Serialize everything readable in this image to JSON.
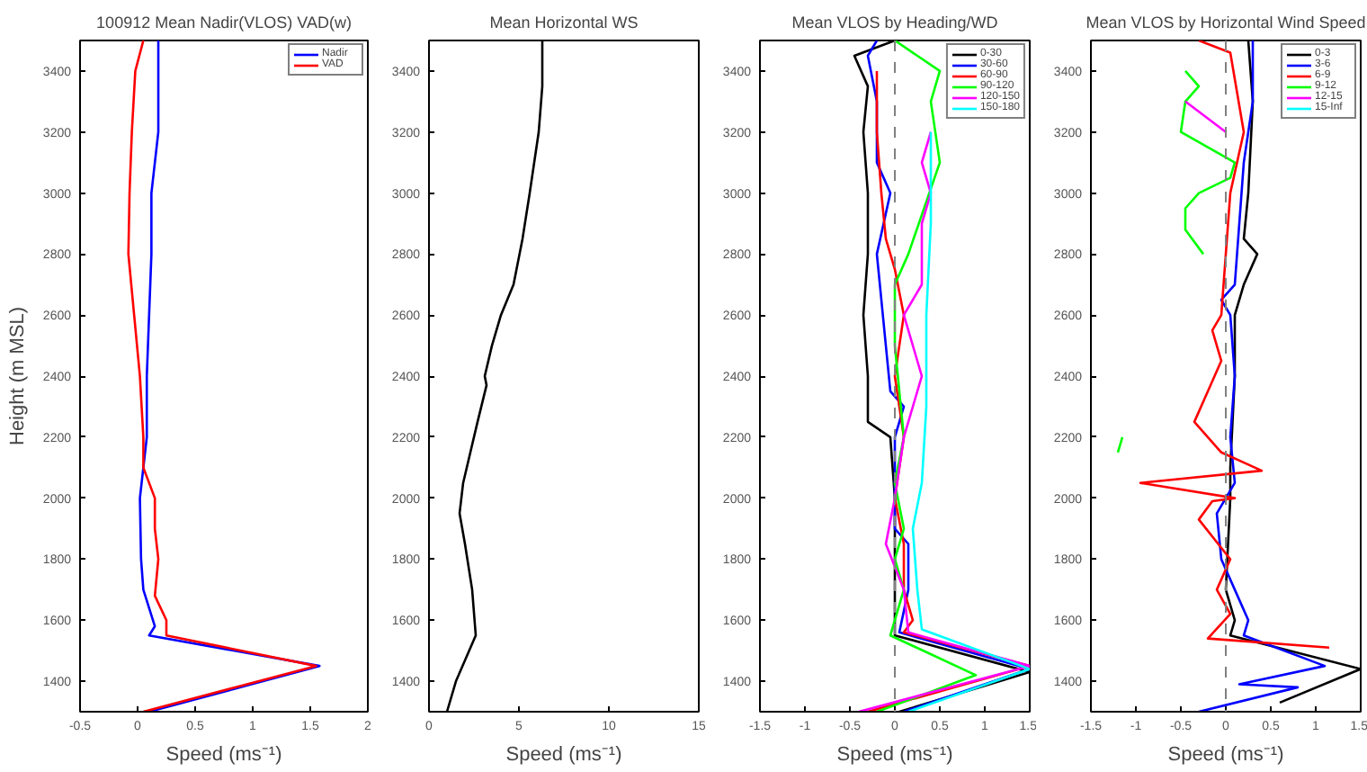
{
  "chart_data": [
    {
      "type": "line",
      "title": "100912 Mean Nadir(VLOS) VAD(w)",
      "xlabel": "Speed (ms⁻¹)",
      "ylabel": "Height (m MSL)",
      "xlim": [
        -0.5,
        2
      ],
      "xticks": [
        -0.5,
        0,
        0.5,
        1,
        1.5,
        2
      ],
      "ylim": [
        1300,
        3500
      ],
      "yticks": [
        1400,
        1600,
        1800,
        2000,
        2200,
        2400,
        2600,
        2800,
        3000,
        3200,
        3400
      ],
      "legend": "top right",
      "series": [
        {
          "name": "Nadir",
          "color": "#0000ff",
          "x": [
            0.1,
            1.58,
            0.1,
            0.15,
            0.05,
            0.03,
            0.02,
            0.08,
            0.08,
            0.1,
            0.12,
            0.12,
            0.18,
            0.18,
            0.18
          ],
          "values": [
            1300,
            1450,
            1550,
            1580,
            1700,
            1800,
            2000,
            2200,
            2400,
            2600,
            2800,
            3000,
            3200,
            3300,
            3500
          ]
        },
        {
          "name": "VAD",
          "color": "#ff0000",
          "x": [
            0.05,
            1.55,
            0.25,
            0.25,
            0.15,
            0.18,
            0.15,
            0.15,
            0.05,
            0.05,
            0.02,
            -0.03,
            -0.08,
            -0.07,
            -0.05,
            -0.02,
            0.05
          ],
          "values": [
            1300,
            1450,
            1550,
            1600,
            1680,
            1800,
            1900,
            2000,
            2100,
            2200,
            2400,
            2600,
            2800,
            3000,
            3200,
            3400,
            3500
          ]
        }
      ]
    },
    {
      "type": "line",
      "title": "Mean Horizontal WS",
      "xlabel": "Speed (ms⁻¹)",
      "xlim": [
        0,
        15
      ],
      "xticks": [
        0,
        5,
        10,
        15
      ],
      "ylim": [
        1300,
        3500
      ],
      "yticks": [
        1400,
        1600,
        1800,
        2000,
        2200,
        2400,
        2600,
        2800,
        3000,
        3200,
        3400
      ],
      "series": [
        {
          "color": "#000000",
          "x": [
            1.0,
            1.5,
            2.6,
            2.4,
            2.0,
            1.7,
            1.9,
            2.3,
            2.7,
            3.2,
            3.1,
            3.5,
            4.0,
            4.7,
            5.2,
            5.6,
            6.1,
            6.3,
            6.3
          ],
          "values": [
            1300,
            1400,
            1550,
            1700,
            1850,
            1950,
            2050,
            2150,
            2250,
            2370,
            2400,
            2500,
            2600,
            2700,
            2850,
            3000,
            3200,
            3350,
            3500
          ]
        }
      ]
    },
    {
      "type": "line",
      "title": "Mean VLOS by Heading/WD",
      "xlabel": "Speed (ms⁻¹)",
      "xlim": [
        -1.5,
        1.5
      ],
      "xticks": [
        -1.5,
        -1,
        -0.5,
        0,
        0.5,
        1,
        1.5
      ],
      "ylim": [
        1300,
        3500
      ],
      "yticks": [
        1400,
        1600,
        1800,
        2000,
        2200,
        2400,
        2600,
        2800,
        3000,
        3200,
        3400
      ],
      "legend": "top right",
      "ref_lines": [
        {
          "axis": "x",
          "value": 0,
          "color": "#808080",
          "line_style": "dashed"
        }
      ],
      "series": [
        {
          "name": "0-30",
          "color": "#000000",
          "x": [
            0.05,
            1.5,
            0.0,
            0.0,
            0.0,
            -0.05,
            -0.3,
            -0.3,
            -0.35,
            -0.3,
            -0.3,
            -0.35,
            -0.3,
            -0.45,
            0.0
          ],
          "values": [
            1300,
            1430,
            1550,
            1700,
            2000,
            2200,
            2250,
            2400,
            2600,
            2800,
            3000,
            3200,
            3350,
            3450,
            3500
          ]
        },
        {
          "name": "30-60",
          "color": "#0000ff",
          "x": [
            0.1,
            1.5,
            0.05,
            0.15,
            0.15,
            0.0,
            0.0,
            0.0,
            0.1,
            -0.05,
            -0.1,
            -0.2,
            -0.05,
            -0.2,
            -0.2,
            -0.3,
            -0.2
          ],
          "values": [
            1300,
            1440,
            1560,
            1700,
            1850,
            1900,
            2000,
            2200,
            2300,
            2350,
            2500,
            2800,
            3000,
            3100,
            3300,
            3450,
            3500
          ]
        },
        {
          "name": "60-90",
          "color": "#ff0000",
          "x": [
            -0.3,
            1.5,
            0.1,
            0.2,
            0.1,
            0.1,
            0.0,
            0.1,
            0.0,
            0.1,
            0.0,
            -0.1,
            -0.15,
            -0.2,
            -0.2
          ],
          "values": [
            1300,
            1450,
            1560,
            1600,
            1700,
            1850,
            2000,
            2200,
            2400,
            2600,
            2750,
            2850,
            3000,
            3200,
            3400
          ]
        },
        {
          "name": "90-120",
          "color": "#00ff00",
          "x": [
            -0.2,
            0.9,
            -0.05,
            0.1,
            0.0,
            0.1,
            0.0,
            0.1,
            0.0,
            0.0,
            0.15,
            0.5,
            0.4,
            0.5,
            0.0
          ],
          "values": [
            1300,
            1420,
            1550,
            1700,
            1800,
            1900,
            2050,
            2200,
            2500,
            2700,
            2800,
            3100,
            3300,
            3400,
            3500
          ]
        },
        {
          "name": "120-150",
          "color": "#ff00ff",
          "x": [
            -0.4,
            1.5,
            0.15,
            0.1,
            -0.1,
            0.0,
            0.1,
            0.3,
            0.1,
            0.3,
            0.3,
            0.4,
            0.3,
            0.4
          ],
          "values": [
            1300,
            1450,
            1560,
            1700,
            1850,
            2000,
            2200,
            2400,
            2600,
            2700,
            2900,
            3000,
            3100,
            3200
          ]
        },
        {
          "name": "150-180",
          "color": "#00ffff",
          "x": [
            0.15,
            1.5,
            0.3,
            0.25,
            0.2,
            0.3,
            0.35,
            0.35,
            0.4,
            0.4
          ],
          "values": [
            1300,
            1440,
            1570,
            1700,
            1900,
            2050,
            2300,
            2600,
            2900,
            3200
          ]
        }
      ]
    },
    {
      "type": "line",
      "title": "Mean VLOS by Horizontal Wind Speed",
      "xlabel": "Speed (ms⁻¹)",
      "xlim": [
        -1.5,
        1.5
      ],
      "xticks": [
        -1.5,
        -1,
        -0.5,
        0,
        0.5,
        1,
        1.5
      ],
      "ylim": [
        1300,
        3500
      ],
      "yticks": [
        1400,
        1600,
        1800,
        2000,
        2200,
        2400,
        2600,
        2800,
        3000,
        3200,
        3400
      ],
      "legend": "top right",
      "ref_lines": [
        {
          "axis": "x",
          "value": 0,
          "color": "#808080",
          "line_style": "dashed"
        }
      ],
      "series": [
        {
          "name": "0-3",
          "color": "#000000",
          "x": [
            0.6,
            1.5,
            0.05,
            0.1,
            0.0,
            0.05,
            0.05,
            0.1,
            0.1,
            0.2,
            0.35,
            0.2,
            0.25,
            0.3,
            0.25
          ],
          "values": [
            1330,
            1440,
            1550,
            1600,
            1700,
            2000,
            2100,
            2400,
            2600,
            2700,
            2800,
            2850,
            3000,
            3300,
            3500
          ]
        },
        {
          "name": "3-6",
          "color": "#0000ff",
          "x": [
            -0.3,
            0.8,
            0.15,
            1.1,
            0.2,
            0.25,
            0.1,
            -0.05,
            -0.1,
            0.1,
            0.05,
            0.1,
            0.05,
            -0.05,
            0.1,
            0.15,
            0.2,
            0.3,
            0.3
          ],
          "values": [
            1300,
            1380,
            1390,
            1450,
            1550,
            1600,
            1700,
            1800,
            1950,
            2050,
            2200,
            2400,
            2600,
            2650,
            2700,
            2900,
            3100,
            3300,
            3500
          ]
        },
        {
          "name": "6-9",
          "color": "#ff0000",
          "x": [
            1.15,
            -0.2,
            0.05,
            -0.1,
            0.05,
            -0.3,
            -0.15,
            0.1,
            -0.95,
            0.4,
            -0.05,
            -0.35,
            -0.2,
            -0.05,
            -0.15,
            -0.05,
            0.0,
            0.05,
            0.2,
            0.05,
            -0.3
          ],
          "values": [
            1510,
            1540,
            1620,
            1700,
            1800,
            1930,
            1990,
            2000,
            2050,
            2090,
            2150,
            2250,
            2350,
            2450,
            2550,
            2600,
            2800,
            3000,
            3200,
            3460,
            3500
          ]
        },
        {
          "name": "9-12",
          "color": "#00ff00",
          "x": [
            -1.2,
            -1.15,
            null,
            -0.25,
            -0.45,
            -0.45,
            -0.3,
            0.05,
            0.1,
            -0.5,
            -0.45,
            -0.3,
            -0.45
          ],
          "values": [
            2150,
            2200,
            null,
            2800,
            2880,
            2950,
            3000,
            3050,
            3100,
            3200,
            3300,
            3350,
            3400
          ]
        },
        {
          "name": "12-15",
          "color": "#ff00ff",
          "x": [
            -0.45,
            0.0
          ],
          "values": [
            3300,
            3200
          ]
        },
        {
          "name": "15-Inf",
          "color": "#00ffff"
        }
      ]
    }
  ]
}
